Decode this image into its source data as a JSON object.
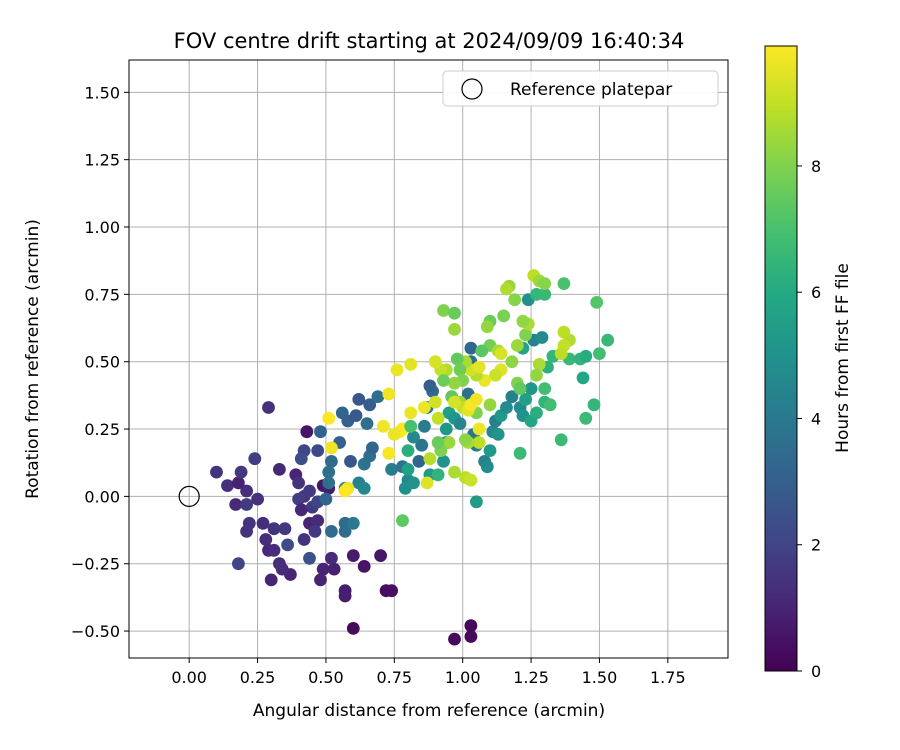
{
  "chart_data": {
    "type": "scatter",
    "title": "FOV centre drift starting at 2024/09/09 16:40:34",
    "xlabel": "Angular distance from reference (arcmin)",
    "ylabel": "Rotation from reference (arcmin)",
    "xlim": [
      -0.22,
      1.97
    ],
    "ylim": [
      -0.6,
      1.62
    ],
    "x_ticks": [
      0.0,
      0.25,
      0.5,
      0.75,
      1.0,
      1.25,
      1.5,
      1.75
    ],
    "x_tick_labels": [
      "0.00",
      "0.25",
      "0.50",
      "0.75",
      "1.00",
      "1.25",
      "1.50",
      "1.75"
    ],
    "y_ticks": [
      -0.5,
      -0.25,
      0.0,
      0.25,
      0.5,
      0.75,
      1.0,
      1.25,
      1.5
    ],
    "y_tick_labels": [
      "−0.50",
      "−0.25",
      "0.00",
      "0.25",
      "0.50",
      "0.75",
      "1.00",
      "1.25",
      "1.50"
    ],
    "grid": true,
    "legend": {
      "placement": "top-right",
      "entries": [
        "Reference platepar"
      ]
    },
    "reference_point": {
      "x": 0.0,
      "y": 0.0
    },
    "colorbar": {
      "label": "Hours from first FF file",
      "colormap": "viridis",
      "range": [
        0,
        9.9
      ],
      "ticks": [
        0,
        2,
        4,
        6,
        8
      ],
      "tick_labels": [
        "0",
        "2",
        "4",
        "6",
        "8"
      ]
    },
    "points": [
      {
        "x": 0.97,
        "y": -0.53,
        "c": 0.2
      },
      {
        "x": 1.03,
        "y": -0.52,
        "c": 0.2
      },
      {
        "x": 1.03,
        "y": -0.48,
        "c": 0.2
      },
      {
        "x": 0.6,
        "y": -0.49,
        "c": 0.3
      },
      {
        "x": 0.72,
        "y": -0.35,
        "c": 0.4
      },
      {
        "x": 0.74,
        "y": -0.35,
        "c": 0.4
      },
      {
        "x": 0.57,
        "y": -0.37,
        "c": 0.8
      },
      {
        "x": 0.57,
        "y": -0.35,
        "c": 0.8
      },
      {
        "x": 0.64,
        "y": -0.26,
        "c": 0.5
      },
      {
        "x": 0.7,
        "y": -0.22,
        "c": 0.6
      },
      {
        "x": 0.6,
        "y": -0.22,
        "c": 0.7
      },
      {
        "x": 0.53,
        "y": -0.27,
        "c": 0.9
      },
      {
        "x": 0.48,
        "y": -0.31,
        "c": 1.0
      },
      {
        "x": 0.49,
        "y": -0.27,
        "c": 1.0
      },
      {
        "x": 0.52,
        "y": -0.23,
        "c": 1.2
      },
      {
        "x": 0.37,
        "y": -0.29,
        "c": 1.0
      },
      {
        "x": 0.34,
        "y": -0.27,
        "c": 1.2
      },
      {
        "x": 0.33,
        "y": -0.25,
        "c": 1.3
      },
      {
        "x": 0.3,
        "y": -0.31,
        "c": 1.0
      },
      {
        "x": 0.29,
        "y": -0.2,
        "c": 1.1
      },
      {
        "x": 0.31,
        "y": -0.2,
        "c": 1.3
      },
      {
        "x": 0.28,
        "y": -0.16,
        "c": 1.3
      },
      {
        "x": 0.27,
        "y": -0.1,
        "c": 1.3
      },
      {
        "x": 0.31,
        "y": -0.12,
        "c": 1.5
      },
      {
        "x": 0.35,
        "y": -0.12,
        "c": 1.6
      },
      {
        "x": 0.36,
        "y": -0.18,
        "c": 2.3
      },
      {
        "x": 0.21,
        "y": -0.13,
        "c": 1.4
      },
      {
        "x": 0.22,
        "y": -0.1,
        "c": 1.5
      },
      {
        "x": 0.18,
        "y": -0.25,
        "c": 2.0
      },
      {
        "x": 0.17,
        "y": -0.03,
        "c": 1.2
      },
      {
        "x": 0.21,
        "y": 0.02,
        "c": 1.3
      },
      {
        "x": 0.21,
        "y": -0.03,
        "c": 1.7
      },
      {
        "x": 0.25,
        "y": -0.01,
        "c": 1.4
      },
      {
        "x": 0.1,
        "y": 0.09,
        "c": 1.5
      },
      {
        "x": 0.14,
        "y": 0.04,
        "c": 1.4
      },
      {
        "x": 0.18,
        "y": 0.05,
        "c": 0.9
      },
      {
        "x": 0.19,
        "y": 0.09,
        "c": 1.6
      },
      {
        "x": 0.24,
        "y": 0.14,
        "c": 1.8
      },
      {
        "x": 0.29,
        "y": 0.33,
        "c": 1.4
      },
      {
        "x": 0.33,
        "y": 0.1,
        "c": 1.1
      },
      {
        "x": 0.39,
        "y": 0.08,
        "c": 1.0
      },
      {
        "x": 0.4,
        "y": 0.05,
        "c": 1.4
      },
      {
        "x": 0.42,
        "y": 0.0,
        "c": 1.5
      },
      {
        "x": 0.4,
        "y": -0.01,
        "c": 1.8
      },
      {
        "x": 0.44,
        "y": 0.02,
        "c": 1.6
      },
      {
        "x": 0.45,
        "y": -0.04,
        "c": 1.7
      },
      {
        "x": 0.47,
        "y": -0.02,
        "c": 2.0
      },
      {
        "x": 0.41,
        "y": -0.05,
        "c": 1.1
      },
      {
        "x": 0.44,
        "y": -0.1,
        "c": 1.0
      },
      {
        "x": 0.47,
        "y": -0.09,
        "c": 1.2
      },
      {
        "x": 0.46,
        "y": -0.13,
        "c": 1.6
      },
      {
        "x": 0.42,
        "y": -0.16,
        "c": 1.5
      },
      {
        "x": 0.44,
        "y": -0.23,
        "c": 2.5
      },
      {
        "x": 0.49,
        "y": 0.04,
        "c": 0.6
      },
      {
        "x": 0.51,
        "y": 0.03,
        "c": 0.8
      },
      {
        "x": 0.43,
        "y": 0.24,
        "c": 0.6
      },
      {
        "x": 0.42,
        "y": 0.17,
        "c": 2.1
      },
      {
        "x": 0.41,
        "y": 0.14,
        "c": 2.4
      },
      {
        "x": 0.47,
        "y": 0.17,
        "c": 2.2
      },
      {
        "x": 0.48,
        "y": 0.24,
        "c": 3.1
      },
      {
        "x": 0.51,
        "y": 0.05,
        "c": 3.6
      },
      {
        "x": 0.51,
        "y": 0.09,
        "c": 3.6
      },
      {
        "x": 0.52,
        "y": 0.13,
        "c": 3.4
      },
      {
        "x": 0.5,
        "y": -0.01,
        "c": 3.2
      },
      {
        "x": 0.52,
        "y": -0.13,
        "c": 3.5
      },
      {
        "x": 0.57,
        "y": -0.1,
        "c": 3.5
      },
      {
        "x": 0.57,
        "y": -0.13,
        "c": 3.5
      },
      {
        "x": 0.6,
        "y": -0.1,
        "c": 4.0
      },
      {
        "x": 0.55,
        "y": 0.2,
        "c": 3.0
      },
      {
        "x": 0.59,
        "y": 0.13,
        "c": 2.6
      },
      {
        "x": 0.56,
        "y": 0.31,
        "c": 3.2
      },
      {
        "x": 0.58,
        "y": 0.28,
        "c": 3.0
      },
      {
        "x": 0.61,
        "y": 0.3,
        "c": 2.8
      },
      {
        "x": 0.62,
        "y": 0.36,
        "c": 2.7
      },
      {
        "x": 0.66,
        "y": 0.34,
        "c": 2.9
      },
      {
        "x": 0.64,
        "y": 0.12,
        "c": 3.8
      },
      {
        "x": 0.66,
        "y": 0.15,
        "c": 3.6
      },
      {
        "x": 0.67,
        "y": 0.18,
        "c": 3.2
      },
      {
        "x": 0.65,
        "y": 0.27,
        "c": 3.6
      },
      {
        "x": 0.69,
        "y": 0.37,
        "c": 3.6
      },
      {
        "x": 0.62,
        "y": 0.05,
        "c": 4.4
      },
      {
        "x": 0.64,
        "y": 0.03,
        "c": 4.5
      },
      {
        "x": 0.57,
        "y": 0.03,
        "c": 4.2
      },
      {
        "x": 0.74,
        "y": 0.1,
        "c": 4.1
      },
      {
        "x": 0.78,
        "y": 0.11,
        "c": 3.8
      },
      {
        "x": 0.8,
        "y": 0.06,
        "c": 4.5
      },
      {
        "x": 0.79,
        "y": 0.03,
        "c": 4.9
      },
      {
        "x": 0.82,
        "y": 0.05,
        "c": 5.0
      },
      {
        "x": 0.8,
        "y": 0.1,
        "c": 5.6
      },
      {
        "x": 0.8,
        "y": 0.17,
        "c": 6.2
      },
      {
        "x": 0.82,
        "y": 0.22,
        "c": 4.6
      },
      {
        "x": 0.86,
        "y": 0.26,
        "c": 4.2
      },
      {
        "x": 0.87,
        "y": 0.33,
        "c": 3.8
      },
      {
        "x": 0.89,
        "y": 0.39,
        "c": 3.4
      },
      {
        "x": 0.88,
        "y": 0.41,
        "c": 3.0
      },
      {
        "x": 0.85,
        "y": 0.19,
        "c": 3.9
      },
      {
        "x": 0.84,
        "y": 0.13,
        "c": 3.2
      },
      {
        "x": 0.88,
        "y": 0.08,
        "c": 5.4
      },
      {
        "x": 0.91,
        "y": 0.08,
        "c": 6.4
      },
      {
        "x": 0.93,
        "y": 0.13,
        "c": 5.0
      },
      {
        "x": 0.94,
        "y": 0.2,
        "c": 4.7
      },
      {
        "x": 0.94,
        "y": 0.25,
        "c": 5.2
      },
      {
        "x": 0.95,
        "y": 0.31,
        "c": 5.6
      },
      {
        "x": 0.97,
        "y": 0.29,
        "c": 5.2
      },
      {
        "x": 0.99,
        "y": 0.27,
        "c": 4.5
      },
      {
        "x": 1.0,
        "y": 0.34,
        "c": 4.0
      },
      {
        "x": 1.02,
        "y": 0.38,
        "c": 3.6
      },
      {
        "x": 1.03,
        "y": 0.5,
        "c": 3.5
      },
      {
        "x": 1.03,
        "y": 0.55,
        "c": 3.3
      },
      {
        "x": 1.04,
        "y": 0.23,
        "c": 3.9
      },
      {
        "x": 1.05,
        "y": 0.19,
        "c": 4.1
      },
      {
        "x": 1.05,
        "y": -0.02,
        "c": 5.4
      },
      {
        "x": 1.08,
        "y": 0.13,
        "c": 4.4
      },
      {
        "x": 1.09,
        "y": 0.11,
        "c": 4.7
      },
      {
        "x": 1.1,
        "y": 0.17,
        "c": 5.3
      },
      {
        "x": 1.11,
        "y": 0.24,
        "c": 4.6
      },
      {
        "x": 1.12,
        "y": 0.28,
        "c": 4.3
      },
      {
        "x": 1.13,
        "y": 0.23,
        "c": 5.0
      },
      {
        "x": 1.14,
        "y": 0.3,
        "c": 5.3
      },
      {
        "x": 1.16,
        "y": 0.33,
        "c": 4.7
      },
      {
        "x": 1.18,
        "y": 0.37,
        "c": 4.3
      },
      {
        "x": 1.21,
        "y": 0.33,
        "c": 4.7
      },
      {
        "x": 1.22,
        "y": 0.3,
        "c": 5.0
      },
      {
        "x": 1.23,
        "y": 0.36,
        "c": 5.6
      },
      {
        "x": 1.25,
        "y": 0.4,
        "c": 5.2
      },
      {
        "x": 1.24,
        "y": 0.73,
        "c": 4.9
      },
      {
        "x": 1.26,
        "y": 0.58,
        "c": 4.4
      },
      {
        "x": 1.29,
        "y": 0.59,
        "c": 4.7
      },
      {
        "x": 1.22,
        "y": 0.55,
        "c": 5.7
      },
      {
        "x": 1.21,
        "y": 0.16,
        "c": 6.7
      },
      {
        "x": 1.25,
        "y": 0.28,
        "c": 5.8
      },
      {
        "x": 1.27,
        "y": 0.31,
        "c": 6.2
      },
      {
        "x": 1.3,
        "y": 0.35,
        "c": 6.4
      },
      {
        "x": 1.32,
        "y": 0.34,
        "c": 6.8
      },
      {
        "x": 1.36,
        "y": 0.21,
        "c": 6.7
      },
      {
        "x": 1.3,
        "y": 0.4,
        "c": 6.9
      },
      {
        "x": 1.31,
        "y": 0.48,
        "c": 6.3
      },
      {
        "x": 1.33,
        "y": 0.52,
        "c": 6.5
      },
      {
        "x": 1.27,
        "y": 0.75,
        "c": 6.5
      },
      {
        "x": 1.3,
        "y": 0.75,
        "c": 6.6
      },
      {
        "x": 1.37,
        "y": 0.79,
        "c": 7.0
      },
      {
        "x": 1.39,
        "y": 0.51,
        "c": 6.6
      },
      {
        "x": 1.43,
        "y": 0.51,
        "c": 6.4
      },
      {
        "x": 1.45,
        "y": 0.52,
        "c": 6.1
      },
      {
        "x": 1.44,
        "y": 0.44,
        "c": 5.9
      },
      {
        "x": 1.45,
        "y": 0.29,
        "c": 6.7
      },
      {
        "x": 1.48,
        "y": 0.34,
        "c": 6.5
      },
      {
        "x": 1.49,
        "y": 0.72,
        "c": 7.2
      },
      {
        "x": 1.5,
        "y": 0.53,
        "c": 6.9
      },
      {
        "x": 1.53,
        "y": 0.58,
        "c": 6.6
      },
      {
        "x": 1.39,
        "y": 0.58,
        "c": 8.7
      },
      {
        "x": 1.37,
        "y": 0.61,
        "c": 8.9
      },
      {
        "x": 1.37,
        "y": 0.56,
        "c": 9.0
      },
      {
        "x": 1.36,
        "y": 0.53,
        "c": 8.9
      },
      {
        "x": 1.28,
        "y": 0.49,
        "c": 8.6
      },
      {
        "x": 1.27,
        "y": 0.45,
        "c": 8.3
      },
      {
        "x": 1.2,
        "y": 0.42,
        "c": 8.0
      },
      {
        "x": 1.21,
        "y": 0.4,
        "c": 7.5
      },
      {
        "x": 1.18,
        "y": 0.5,
        "c": 8.2
      },
      {
        "x": 1.2,
        "y": 0.56,
        "c": 8.4
      },
      {
        "x": 1.23,
        "y": 0.6,
        "c": 8.0
      },
      {
        "x": 1.24,
        "y": 0.64,
        "c": 8.6
      },
      {
        "x": 1.22,
        "y": 0.65,
        "c": 8.3
      },
      {
        "x": 1.19,
        "y": 0.73,
        "c": 8.1
      },
      {
        "x": 1.17,
        "y": 0.78,
        "c": 8.3
      },
      {
        "x": 1.15,
        "y": 0.67,
        "c": 7.9
      },
      {
        "x": 1.16,
        "y": 0.77,
        "c": 8.7
      },
      {
        "x": 1.26,
        "y": 0.82,
        "c": 8.9
      },
      {
        "x": 1.28,
        "y": 0.8,
        "c": 8.4
      },
      {
        "x": 1.3,
        "y": 0.79,
        "c": 8.1
      },
      {
        "x": 1.1,
        "y": 0.65,
        "c": 7.6
      },
      {
        "x": 1.09,
        "y": 0.63,
        "c": 8.3
      },
      {
        "x": 1.1,
        "y": 0.56,
        "c": 7.8
      },
      {
        "x": 1.07,
        "y": 0.54,
        "c": 7.3
      },
      {
        "x": 1.13,
        "y": 0.54,
        "c": 8.6
      },
      {
        "x": 1.14,
        "y": 0.53,
        "c": 9.3
      },
      {
        "x": 1.14,
        "y": 0.47,
        "c": 9.4
      },
      {
        "x": 1.12,
        "y": 0.45,
        "c": 9.1
      },
      {
        "x": 1.08,
        "y": 0.43,
        "c": 9.6
      },
      {
        "x": 1.1,
        "y": 0.34,
        "c": 8.3
      },
      {
        "x": 1.05,
        "y": 0.31,
        "c": 8.0
      },
      {
        "x": 1.05,
        "y": 0.45,
        "c": 8.8
      },
      {
        "x": 1.03,
        "y": 0.47,
        "c": 9.2
      },
      {
        "x": 1.06,
        "y": 0.48,
        "c": 9.5
      },
      {
        "x": 1.01,
        "y": 0.5,
        "c": 8.6
      },
      {
        "x": 0.98,
        "y": 0.51,
        "c": 7.5
      },
      {
        "x": 0.99,
        "y": 0.47,
        "c": 7.7
      },
      {
        "x": 1.0,
        "y": 0.43,
        "c": 8.0
      },
      {
        "x": 0.97,
        "y": 0.42,
        "c": 8.3
      },
      {
        "x": 0.94,
        "y": 0.47,
        "c": 8.7
      },
      {
        "x": 0.92,
        "y": 0.47,
        "c": 9.0
      },
      {
        "x": 0.9,
        "y": 0.5,
        "c": 9.3
      },
      {
        "x": 0.93,
        "y": 0.43,
        "c": 7.7
      },
      {
        "x": 0.96,
        "y": 0.37,
        "c": 7.4
      },
      {
        "x": 0.99,
        "y": 0.35,
        "c": 8.4
      },
      {
        "x": 1.0,
        "y": 0.33,
        "c": 9.0
      },
      {
        "x": 1.02,
        "y": 0.32,
        "c": 9.5
      },
      {
        "x": 1.03,
        "y": 0.34,
        "c": 9.8
      },
      {
        "x": 1.05,
        "y": 0.36,
        "c": 9.7
      },
      {
        "x": 1.06,
        "y": 0.25,
        "c": 9.6
      },
      {
        "x": 1.06,
        "y": 0.2,
        "c": 8.9
      },
      {
        "x": 1.02,
        "y": 0.2,
        "c": 8.6
      },
      {
        "x": 1.01,
        "y": 0.21,
        "c": 8.2
      },
      {
        "x": 0.95,
        "y": 0.2,
        "c": 8.4
      },
      {
        "x": 0.92,
        "y": 0.17,
        "c": 8.0
      },
      {
        "x": 0.91,
        "y": 0.2,
        "c": 7.6
      },
      {
        "x": 0.88,
        "y": 0.14,
        "c": 8.8
      },
      {
        "x": 0.87,
        "y": 0.05,
        "c": 9.4
      },
      {
        "x": 0.9,
        "y": 0.35,
        "c": 9.2
      },
      {
        "x": 0.86,
        "y": 0.33,
        "c": 9.6
      },
      {
        "x": 0.91,
        "y": 0.29,
        "c": 9.0
      },
      {
        "x": 0.93,
        "y": 0.69,
        "c": 8.0
      },
      {
        "x": 0.97,
        "y": 0.68,
        "c": 7.6
      },
      {
        "x": 0.97,
        "y": 0.62,
        "c": 8.4
      },
      {
        "x": 0.97,
        "y": 0.09,
        "c": 8.6
      },
      {
        "x": 1.01,
        "y": 0.07,
        "c": 8.9
      },
      {
        "x": 1.03,
        "y": 0.06,
        "c": 9.1
      },
      {
        "x": 0.78,
        "y": -0.09,
        "c": 7.4
      },
      {
        "x": 0.81,
        "y": 0.31,
        "c": 9.6
      },
      {
        "x": 0.78,
        "y": 0.25,
        "c": 9.8
      },
      {
        "x": 0.77,
        "y": 0.24,
        "c": 9.9
      },
      {
        "x": 0.75,
        "y": 0.23,
        "c": 9.6
      },
      {
        "x": 0.71,
        "y": 0.26,
        "c": 9.7
      },
      {
        "x": 0.76,
        "y": 0.47,
        "c": 9.6
      },
      {
        "x": 0.81,
        "y": 0.49,
        "c": 9.5
      },
      {
        "x": 0.73,
        "y": 0.38,
        "c": 9.7
      },
      {
        "x": 0.73,
        "y": 0.16,
        "c": 9.8
      },
      {
        "x": 0.51,
        "y": 0.29,
        "c": 9.9
      },
      {
        "x": 0.52,
        "y": 0.18,
        "c": 9.7
      },
      {
        "x": 0.58,
        "y": 0.03,
        "c": 9.6
      },
      {
        "x": 0.57,
        "y": 0.02,
        "c": 9.9
      },
      {
        "x": 0.97,
        "y": 0.35,
        "c": 9.3
      },
      {
        "x": 0.81,
        "y": 0.26,
        "c": 7.0
      }
    ]
  }
}
